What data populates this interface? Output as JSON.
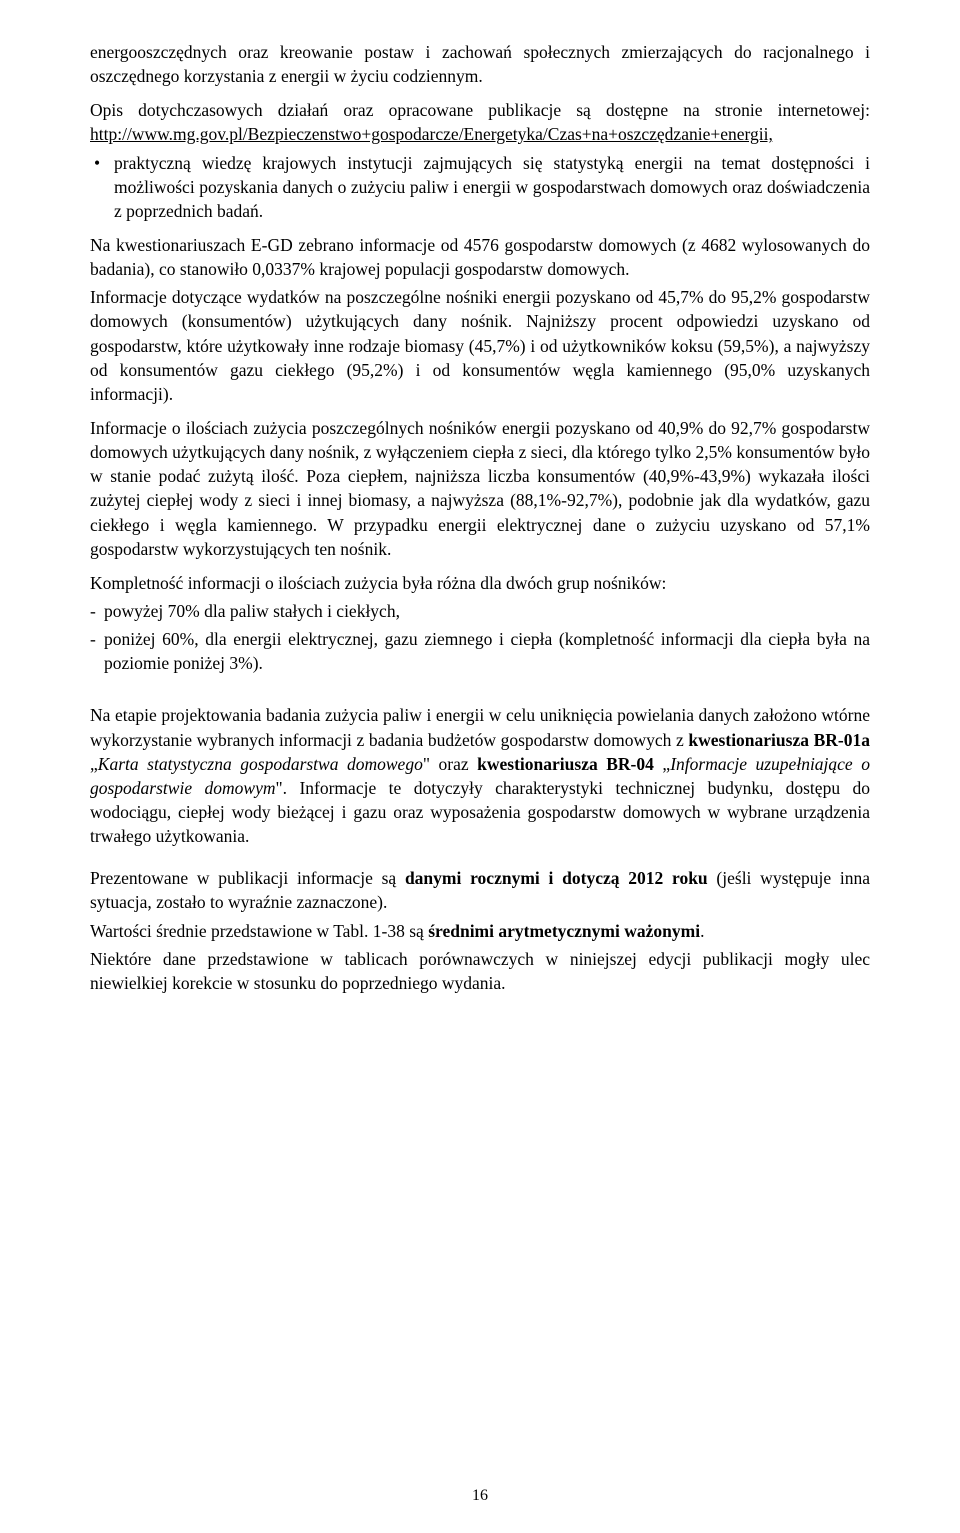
{
  "page_number": "16",
  "p1": "energooszczędnych oraz kreowanie postaw i zachowań społecznych zmierzających do racjonalnego i oszczędnego korzystania z energii w życiu codziennym.",
  "p2_a": "Opis dotychczasowych działań oraz opracowane publikacje są dostępne na stronie internetowej: ",
  "p2_link": "http://www.mg.gov.pl/Bezpieczenstwo+gospodarcze/Energetyka/Czas+na+oszczędzanie+energii,",
  "bullet1": "praktyczną wiedzę krajowych instytucji zajmujących się statystyką energii na temat dostępności i możliwości pozyskania danych o zużyciu paliw i energii w gospodarstwach domowych oraz doświadczenia z poprzednich badań.",
  "p3": "Na kwestionariuszach E-GD zebrano informacje od 4576 gospodarstw domowych (z 4682 wylosowanych do badania), co stanowiło 0,0337% krajowej populacji gospodarstw domowych.",
  "p4": "Informacje dotyczące wydatków na poszczególne nośniki energii pozyskano od 45,7% do 95,2% gospodarstw domowych (konsumentów) użytkujących dany nośnik. Najniższy procent odpowiedzi uzyskano od gospodarstw, które użytkowały inne rodzaje biomasy (45,7%) i od użytkowników koksu (59,5%), a najwyższy od konsumentów gazu ciekłego (95,2%) i od konsumentów węgla kamiennego (95,0% uzyskanych informacji).",
  "p5": "Informacje o ilościach zużycia poszczególnych nośników energii pozyskano od 40,9% do 92,7% gospodarstw domowych użytkujących dany nośnik, z wyłączeniem ciepła z sieci, dla którego tylko 2,5% konsumentów było w stanie podać zużytą ilość. Poza ciepłem, najniższa liczba konsumentów (40,9%-43,9%) wykazała ilości zużytej ciepłej wody z sieci i innej biomasy, a najwyższa (88,1%-92,7%), podobnie jak dla wydatków, gazu ciekłego i węgla kamiennego. W przypadku energii elektrycznej dane o zużyciu uzyskano od 57,1% gospodarstw wykorzystujących ten nośnik.",
  "p6": "Kompletność informacji o ilościach zużycia była różna dla dwóch grup nośników:",
  "dash1": "powyżej 70% dla paliw stałych i ciekłych,",
  "dash2": "poniżej 60%, dla energii elektrycznej, gazu ziemnego i ciepła (kompletność informacji dla ciepła była na poziomie poniżej 3%).",
  "p7_a": "Na etapie projektowania badania zużycia paliw i energii w celu uniknięcia powielania danych założono wtórne wykorzystanie wybranych informacji z badania budżetów gospodarstw domowych z ",
  "p7_b1": "kwestionariusza BR-01a",
  "p7_c1": " „",
  "p7_i1": "Karta statystyczna gospodarstwa domowego",
  "p7_d1": "\" oraz ",
  "p7_b2": "kwestionariusza BR-04",
  "p7_c2": " „",
  "p7_i2": "Informacje uzupełniające o gospodarstwie domowym",
  "p7_d2": "\". Informacje te dotyczyły charakterystyki technicznej budynku, dostępu do wodociągu, ciepłej wody bieżącej i gazu oraz wyposażenia gospodarstw domowych w wybrane urządzenia trwałego użytkowania.",
  "p8_a": "Prezentowane w publikacji informacje są ",
  "p8_b": "danymi rocznymi i dotyczą 2012 roku",
  "p8_c": " (jeśli występuje inna sytuacja, zostało to wyraźnie zaznaczone).",
  "p9_a": "Wartości średnie przedstawione w Tabl. 1-38 są ",
  "p9_b": "średnimi arytmetycznymi ważonymi",
  "p9_c": ".",
  "p10": "Niektóre dane przedstawione w tablicach porównawczych w niniejszej edycji publikacji mogły ulec niewielkiej korekcie w stosunku do poprzedniego wydania."
}
